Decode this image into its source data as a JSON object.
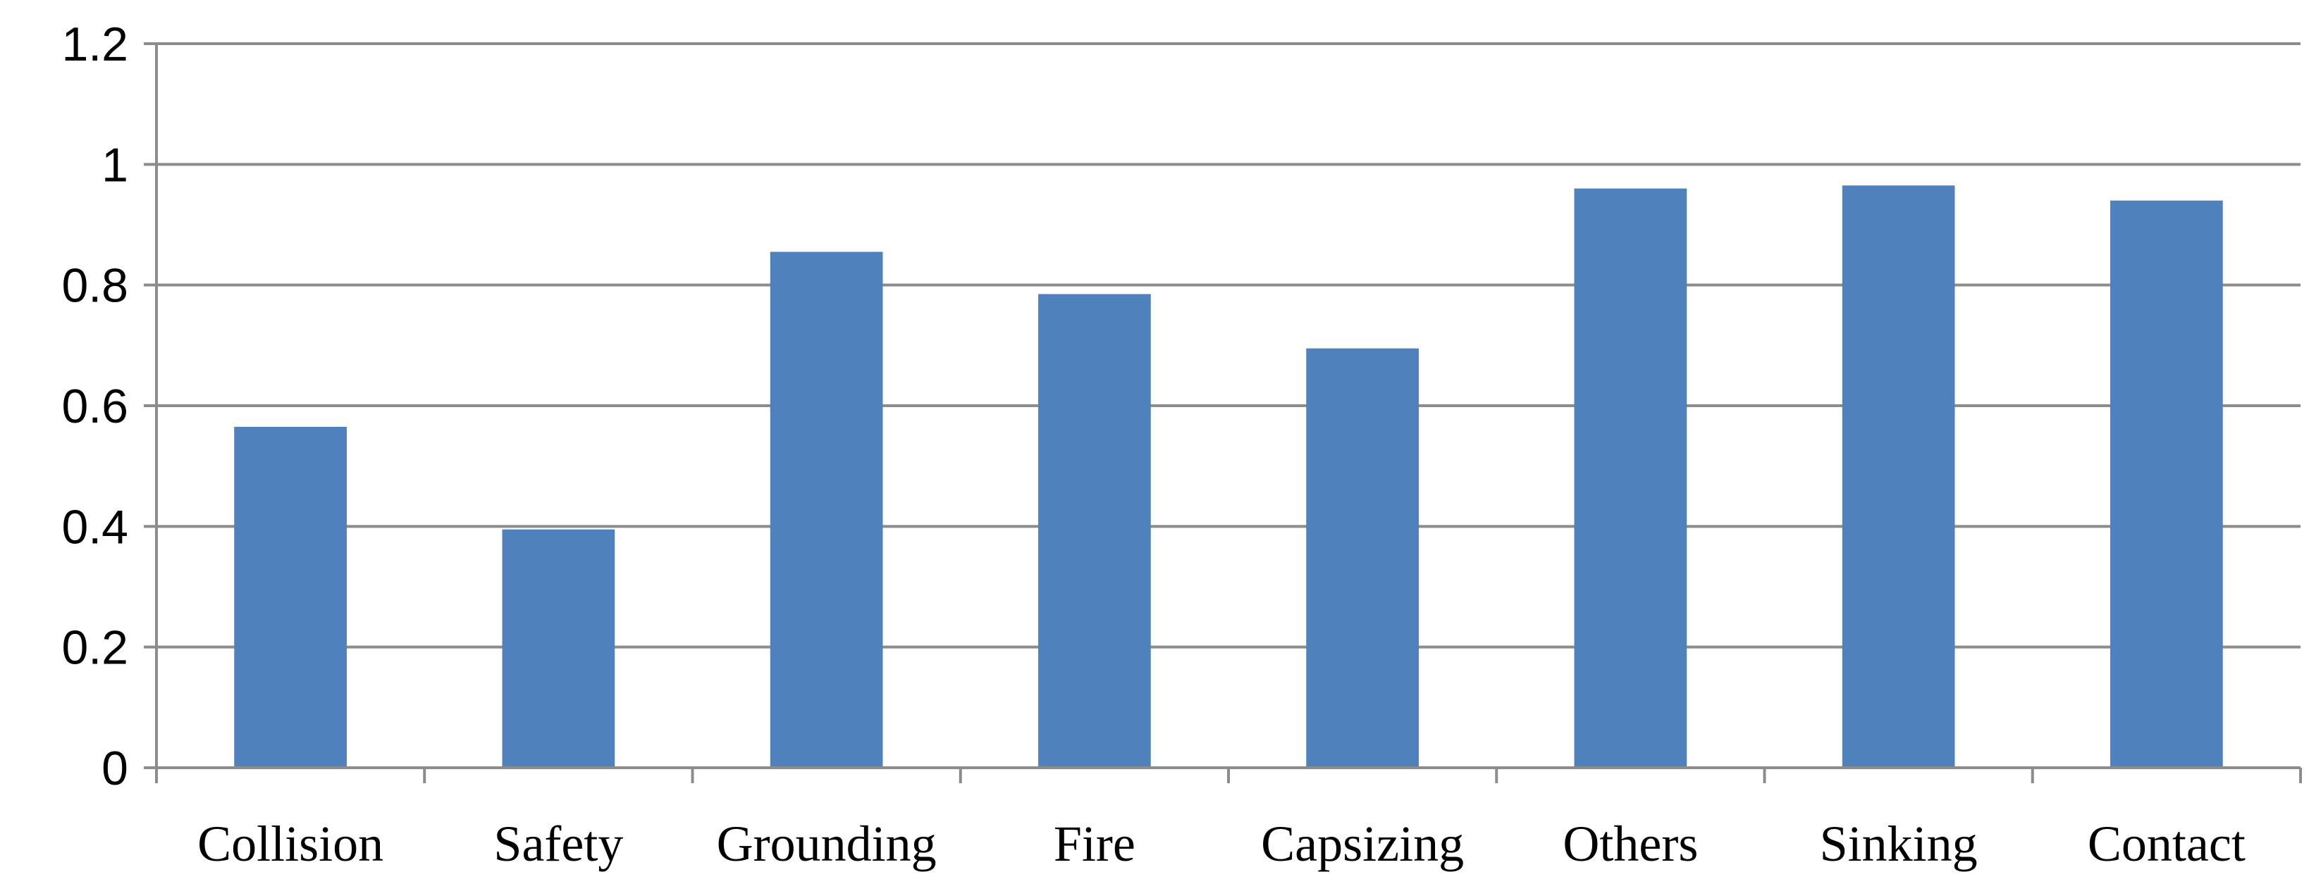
{
  "chart_data": {
    "type": "bar",
    "title": "",
    "xlabel": "",
    "ylabel": "",
    "categories": [
      "Collision",
      "Safety",
      "Grounding",
      "Fire",
      "Capsizing",
      "Others",
      "Sinking",
      "Contact"
    ],
    "values": [
      0.565,
      0.395,
      0.855,
      0.785,
      0.695,
      0.96,
      0.965,
      0.94
    ],
    "ylim": [
      0,
      1.2
    ],
    "yticks": [
      "0",
      "0.2",
      "0.4",
      "0.6",
      "0.8",
      "1",
      "1.2"
    ],
    "grid": true,
    "legend": "none",
    "colors": {
      "bar": "#4f81bd",
      "grid": "#8c8c8c",
      "axis": "#8c8c8c"
    }
  }
}
